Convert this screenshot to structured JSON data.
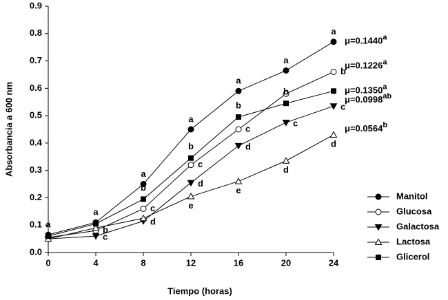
{
  "chart_data": {
    "type": "line",
    "x_label": "Tiempo (horas)",
    "y_label": "Absorbancia a 600 nm",
    "x": [
      0,
      4,
      8,
      12,
      16,
      20,
      24
    ],
    "xlim": [
      0,
      24
    ],
    "xticks": [
      0,
      4,
      8,
      12,
      16,
      20,
      24
    ],
    "ylim": [
      0,
      0.9
    ],
    "yticks": [
      {
        "value": 0,
        "label": "0.0"
      },
      0.1,
      0.2,
      0.3,
      0.4,
      0.5,
      0.6,
      0.7,
      0.8,
      0.9
    ],
    "series": [
      {
        "name": "Manitol",
        "color": "#000000",
        "marker": "circle",
        "filled": true,
        "values": [
          0.065,
          0.11,
          0.25,
          0.45,
          0.59,
          0.665,
          0.77
        ],
        "letters": [
          "a",
          "a",
          "a",
          "a",
          "a",
          "a",
          "a"
        ],
        "rate": "μ=0.1440",
        "rate_group": "a"
      },
      {
        "name": "Glucosa",
        "color": "#000000",
        "marker": "circle",
        "filled": false,
        "values": [
          0.055,
          0.08,
          0.16,
          0.32,
          0.45,
          0.58,
          0.66
        ],
        "letters": [
          null,
          "b",
          "c",
          "c",
          "c",
          null,
          "b"
        ],
        "rate": "μ=0.1226",
        "rate_group": "a"
      },
      {
        "name": "Galactosa",
        "color": "#000000",
        "marker": "triangle-down",
        "filled": true,
        "values": [
          0.05,
          0.06,
          0.115,
          0.255,
          0.39,
          0.475,
          0.535
        ],
        "letters": [
          null,
          "c",
          "d",
          "d",
          "d",
          "c",
          "c"
        ],
        "rate": "μ=0.0998",
        "rate_group": "ab"
      },
      {
        "name": "Lactosa",
        "color": "#000000",
        "marker": "triangle-up",
        "filled": false,
        "values": [
          0.05,
          0.09,
          0.125,
          0.205,
          0.26,
          0.335,
          0.43
        ],
        "letters": [
          null,
          null,
          null,
          "e",
          "e",
          "d",
          "d"
        ],
        "rate": "μ=0.0564",
        "rate_group": "b"
      },
      {
        "name": "Glicerol",
        "color": "#000000",
        "marker": "square",
        "filled": true,
        "values": [
          0.06,
          0.105,
          0.195,
          0.345,
          0.495,
          0.545,
          0.59
        ],
        "letters": [
          null,
          null,
          "b",
          "b",
          "b",
          "b",
          null
        ],
        "rate": "μ=0.1350",
        "rate_group": "a"
      }
    ]
  }
}
